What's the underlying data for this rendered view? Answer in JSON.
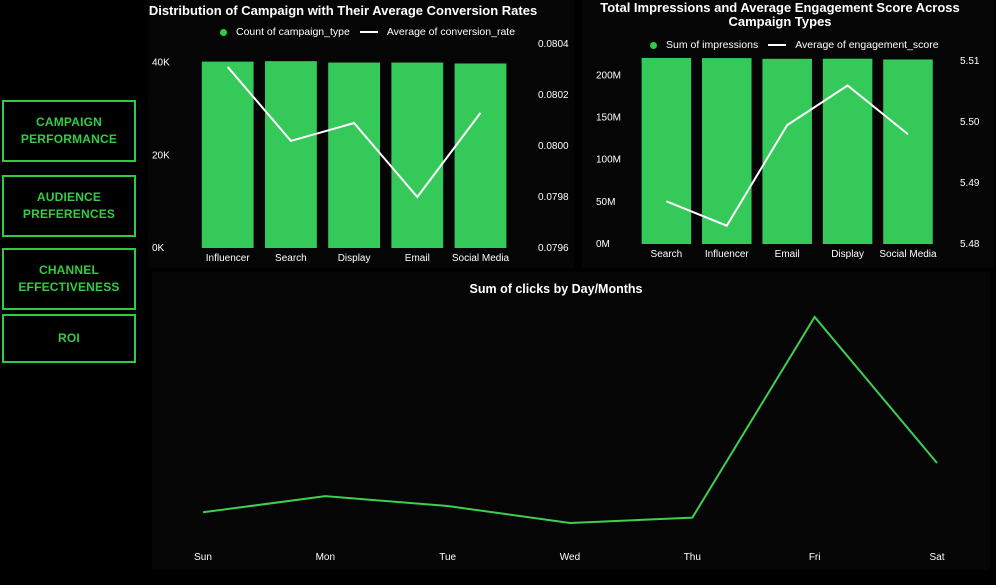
{
  "nav": {
    "campaign_performance": "CAMPAIGN\nPERFORMANCE",
    "audience_preferences": "AUDIENCE\nPREFERENCES",
    "channel_effectiveness": "CHANNEL\nEFFECTIVENESS",
    "roi": "ROI"
  },
  "colors": {
    "bar": "#35c95a",
    "line_white": "#ffffff",
    "line_green": "#3ecf4f",
    "accent": "#2ecc40"
  },
  "chart_data": [
    {
      "type": "bar",
      "title": "Distribution of Campaign with Their Average Conversion Rates",
      "legend": [
        "Count of campaign_type",
        "Average of conversion_rate"
      ],
      "categories": [
        "Influencer",
        "Search",
        "Display",
        "Email",
        "Social Media"
      ],
      "series": [
        {
          "name": "Count of campaign_type",
          "type": "bar",
          "axis": "left",
          "values": [
            40200,
            40300,
            40000,
            40000,
            39800
          ]
        },
        {
          "name": "Average of conversion_rate",
          "type": "line",
          "axis": "right",
          "values": [
            0.08031,
            0.08002,
            0.08009,
            0.0798,
            0.08013
          ]
        }
      ],
      "y_left": {
        "ticks": [
          "0K",
          "20K",
          "40K"
        ],
        "tick_values": [
          0,
          20000,
          40000
        ],
        "range": [
          0,
          44000
        ]
      },
      "y_right": {
        "ticks": [
          "0.0796",
          "0.0798",
          "0.0800",
          "0.0802",
          "0.0804"
        ],
        "tick_values": [
          0.0796,
          0.0798,
          0.08,
          0.0802,
          0.0804
        ],
        "range": [
          0.0796,
          0.0804
        ]
      },
      "legend_position": "top-center"
    },
    {
      "type": "bar",
      "title": "Total Impressions and Average Engagement Score Across Campaign Types",
      "legend": [
        "Sum of impressions",
        "Average of engagement_score"
      ],
      "categories": [
        "Search",
        "Influencer",
        "Email",
        "Display",
        "Social Media"
      ],
      "series": [
        {
          "name": "Sum of impressions",
          "type": "bar",
          "axis": "left",
          "values": [
            220500000,
            220300000,
            219500000,
            219600000,
            218700000
          ]
        },
        {
          "name": "Average of engagement_score",
          "type": "line",
          "axis": "right",
          "values": [
            5.487,
            5.483,
            5.4995,
            5.506,
            5.498
          ]
        }
      ],
      "y_left": {
        "ticks": [
          "0M",
          "50M",
          "100M",
          "150M",
          "200M"
        ],
        "tick_values": [
          0,
          50000000,
          100000000,
          150000000,
          200000000
        ],
        "range": [
          0,
          224000000
        ]
      },
      "y_right": {
        "ticks": [
          "5.48",
          "5.49",
          "5.50",
          "5.51"
        ],
        "tick_values": [
          5.48,
          5.49,
          5.5,
          5.51
        ],
        "range": [
          5.48,
          5.511
        ]
      },
      "legend_position": "top-center"
    },
    {
      "type": "line",
      "title": "Sum of clicks by Day/Months",
      "categories": [
        "Sun",
        "Mon",
        "Tue",
        "Wed",
        "Thu",
        "Fri",
        "Sat"
      ],
      "series": [
        {
          "name": "Sum of clicks",
          "values": [
            82,
            100,
            89,
            70,
            76,
            300,
            137
          ]
        }
      ],
      "y_range": [
        60,
        310
      ],
      "grid": false
    }
  ]
}
